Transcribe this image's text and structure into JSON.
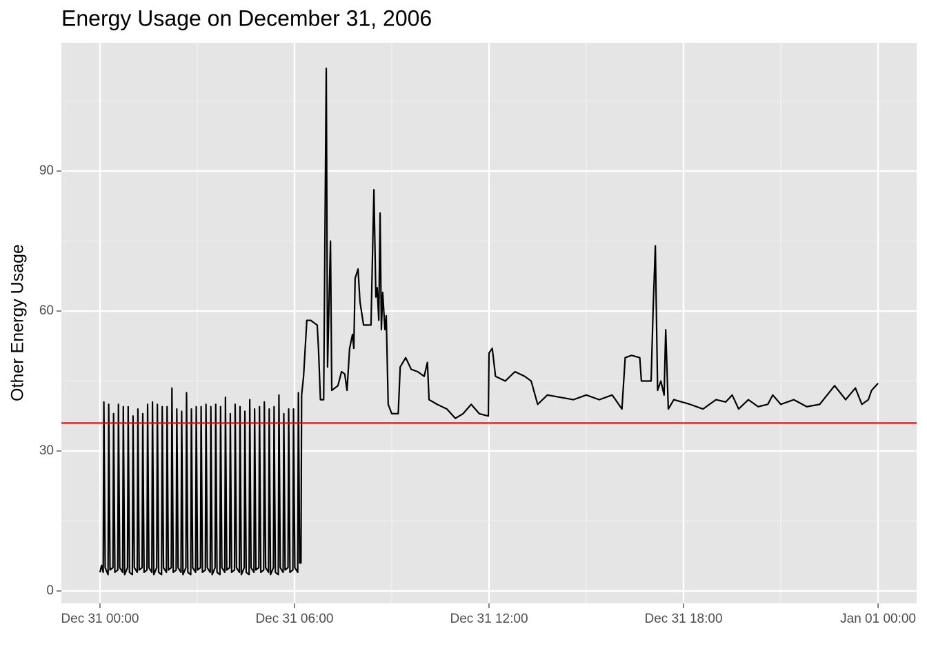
{
  "chart_data": {
    "type": "line",
    "title": "Energy Usage on December 31, 2006",
    "y_label": "Other Energy Usage",
    "color": "#000000",
    "hline": {
      "value": 36,
      "color": "#e00000"
    },
    "xlim": [
      -1.19,
      25.19
    ],
    "ylim": [
      -2.66,
      117.5
    ],
    "xticks": [
      {
        "value": 0,
        "label": "Dec 31 00:00"
      },
      {
        "value": 6,
        "label": "Dec 31 06:00"
      },
      {
        "value": 12,
        "label": "Dec 31 12:00"
      },
      {
        "value": 18,
        "label": "Dec 31 18:00"
      },
      {
        "value": 24,
        "label": "Jan 01 00:00"
      }
    ],
    "yticks": [
      0,
      30,
      60,
      90
    ],
    "xminor": [
      3,
      9,
      15,
      21
    ],
    "yminor": [
      15,
      45,
      75,
      105
    ],
    "grid": true,
    "x": [
      0,
      0.05,
      0.1,
      0.12,
      0.16,
      0.25,
      0.27,
      0.31,
      0.4,
      0.42,
      0.46,
      0.55,
      0.57,
      0.61,
      0.7,
      0.72,
      0.76,
      0.85,
      0.87,
      0.91,
      1.0,
      1.02,
      1.06,
      1.15,
      1.17,
      1.21,
      1.3,
      1.32,
      1.36,
      1.45,
      1.47,
      1.51,
      1.6,
      1.62,
      1.66,
      1.75,
      1.77,
      1.81,
      1.9,
      1.92,
      1.96,
      2.05,
      2.07,
      2.11,
      2.2,
      2.22,
      2.26,
      2.35,
      2.37,
      2.41,
      2.5,
      2.52,
      2.56,
      2.65,
      2.67,
      2.71,
      2.8,
      2.82,
      2.86,
      2.95,
      2.97,
      3.01,
      3.1,
      3.12,
      3.16,
      3.25,
      3.27,
      3.31,
      3.4,
      3.42,
      3.46,
      3.55,
      3.57,
      3.61,
      3.7,
      3.72,
      3.76,
      3.85,
      3.87,
      3.91,
      4.0,
      4.02,
      4.06,
      4.15,
      4.17,
      4.21,
      4.3,
      4.32,
      4.36,
      4.45,
      4.47,
      4.51,
      4.6,
      4.62,
      4.66,
      4.75,
      4.77,
      4.81,
      4.9,
      4.92,
      4.96,
      5.05,
      5.07,
      5.11,
      5.2,
      5.22,
      5.26,
      5.35,
      5.37,
      5.41,
      5.5,
      5.52,
      5.56,
      5.65,
      5.67,
      5.71,
      5.8,
      5.82,
      5.86,
      5.95,
      5.97,
      6.01,
      6.1,
      6.12,
      6.16,
      6.2,
      6.22,
      6.28,
      6.38,
      6.5,
      6.6,
      6.7,
      6.74,
      6.8,
      6.9,
      6.98,
      7.02,
      7.06,
      7.11,
      7.15,
      7.34,
      7.45,
      7.55,
      7.62,
      7.7,
      7.79,
      7.83,
      7.87,
      7.96,
      8.02,
      8.13,
      8.36,
      8.45,
      8.51,
      8.55,
      8.6,
      8.64,
      8.68,
      8.72,
      8.79,
      8.83,
      8.89,
      9.0,
      9.2,
      9.26,
      9.43,
      9.6,
      9.8,
      10.0,
      10.1,
      10.15,
      10.4,
      10.7,
      10.96,
      11.2,
      11.45,
      11.7,
      11.98,
      12.0,
      12.1,
      12.2,
      12.5,
      12.8,
      13.1,
      13.3,
      13.5,
      13.8,
      14.2,
      14.6,
      15.0,
      15.4,
      15.8,
      16.1,
      16.2,
      16.4,
      16.65,
      16.7,
      17.0,
      17.06,
      17.13,
      17.2,
      17.3,
      17.4,
      17.45,
      17.53,
      17.7,
      18.2,
      18.6,
      19.0,
      19.3,
      19.5,
      19.7,
      20.0,
      20.3,
      20.6,
      20.75,
      21.0,
      21.4,
      21.8,
      22.2,
      22.66,
      23.0,
      23.3,
      23.5,
      23.7,
      23.8,
      24.0
    ],
    "values": [
      4,
      5.5,
      4,
      40.5,
      5,
      3.5,
      40,
      4.5,
      5,
      38,
      4,
      4.5,
      40,
      5,
      4,
      39.5,
      3.5,
      5,
      39.5,
      4,
      3.5,
      37.5,
      5,
      4,
      39,
      4.5,
      5,
      38,
      4,
      4.5,
      40,
      5,
      4,
      40.5,
      3.5,
      5,
      40,
      4,
      3.5,
      39.5,
      5,
      4,
      39.5,
      4.5,
      5,
      43.5,
      4,
      4.5,
      39,
      5,
      4,
      38.5,
      3.5,
      5,
      42.5,
      4,
      3.5,
      39,
      5,
      4,
      39.5,
      4.5,
      5,
      39.5,
      4,
      4.5,
      40,
      5,
      4,
      39.5,
      3.5,
      5,
      40,
      4,
      3.5,
      39.5,
      5,
      4,
      41.5,
      4.5,
      5,
      38,
      4,
      4.5,
      40,
      5,
      4,
      39.5,
      3.5,
      5,
      38.5,
      4,
      3.5,
      41,
      5,
      4,
      39,
      4.5,
      5,
      39.5,
      4,
      4.5,
      40.5,
      5,
      4,
      39,
      3.5,
      5,
      39.5,
      4,
      3.5,
      42,
      5,
      4,
      38,
      4.5,
      5,
      39,
      4,
      4.5,
      39,
      5,
      4,
      42.5,
      6,
      6,
      42,
      46,
      58,
      58,
      57.5,
      57,
      52,
      41,
      41,
      112,
      48,
      60,
      75,
      43,
      44,
      47,
      46.5,
      43,
      52,
      55,
      52,
      67,
      69,
      62,
      57,
      57,
      86,
      63,
      65,
      58,
      81,
      56,
      64,
      56,
      59,
      40,
      38,
      38,
      48,
      50,
      47.5,
      47,
      46,
      49,
      41,
      40,
      39,
      37,
      38,
      40,
      38,
      37.5,
      51,
      52,
      46,
      45,
      47,
      46,
      45,
      40,
      42,
      41.5,
      41,
      42,
      41,
      42,
      39,
      50,
      50.5,
      50,
      45,
      45,
      60,
      74,
      43,
      45,
      42,
      56,
      39,
      41,
      40,
      39,
      41,
      40.5,
      42,
      39,
      41,
      39.5,
      40,
      42,
      40,
      41,
      39.5,
      40,
      44,
      41,
      43.5,
      40,
      41,
      43,
      44.5
    ]
  }
}
